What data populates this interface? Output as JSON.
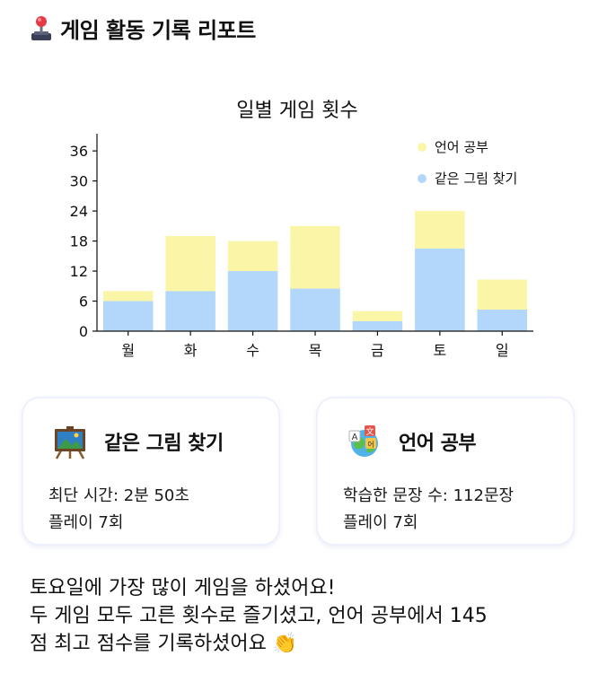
{
  "header": {
    "icon": "joystick-icon",
    "title": "게임 활동 기록 리포트"
  },
  "chart_data": {
    "type": "bar",
    "stacked": true,
    "title": "일별 게임 횟수",
    "categories": [
      "월",
      "화",
      "수",
      "목",
      "금",
      "토",
      "일"
    ],
    "series": [
      {
        "name": "같은 그림 찾기",
        "color": "#b2d7fb",
        "values": [
          6,
          8,
          12,
          8.5,
          2,
          16.5,
          4.3
        ]
      },
      {
        "name": "언어 공부",
        "color": "#fbf5a7",
        "values": [
          2,
          11,
          6,
          12.5,
          2,
          7.5,
          6
        ]
      }
    ],
    "ylim": [
      0,
      38
    ],
    "yticks": [
      0,
      6,
      12,
      18,
      24,
      30,
      36
    ],
    "legend_position": "top-right",
    "grid": false
  },
  "cards": [
    {
      "icon": "painting-easel-icon",
      "title": "같은 그림 찾기",
      "line1": "최단 시간: 2분 50초",
      "line2": "플레이 7회"
    },
    {
      "icon": "language-globe-icon",
      "title": "언어 공부",
      "line1": "학습한 문장 수: 112문장",
      "line2": "플레이 7회"
    }
  ],
  "summary": {
    "line1": "토요일에 가장 많이 게임을 하셨어요!",
    "line2": "두 게임 모두 고른 횟수로 즐기셨고, 언어 공부에서 145",
    "line3": "점 최고 점수를 기록하셨어요 👏"
  }
}
